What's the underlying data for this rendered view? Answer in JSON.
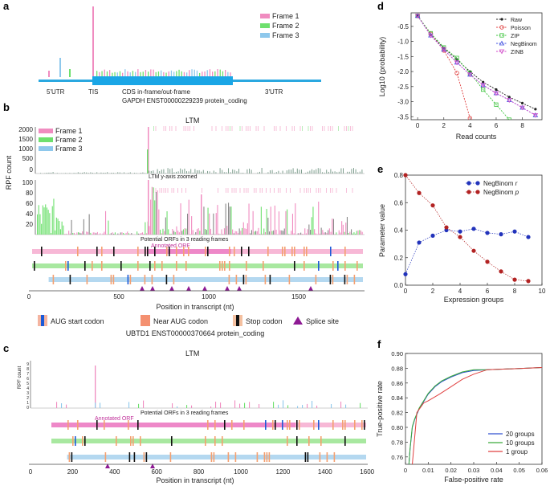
{
  "panels": {
    "a": {
      "letter": "a",
      "legend": [
        "Frame 1",
        "Frame 2",
        "Frame 3"
      ],
      "regions": {
        "utr5": "5'UTR",
        "tis": "TIS",
        "cds": "CDS in-frame/out-frame",
        "utr3": "3'UTR"
      },
      "gene": "GAPDH ENST00000229239 protein_coding"
    },
    "b": {
      "letter": "b",
      "title": "LTM",
      "ylabel": "RPF count",
      "legend": [
        "Frame 1",
        "Frame 2",
        "Frame 3"
      ],
      "yticks_top": [
        "2000",
        "1500",
        "1000",
        "500",
        "0"
      ],
      "zoom_label": "LTM y-axis zoomed",
      "yticks_zoom": [
        "100",
        "80",
        "60",
        "40",
        "20"
      ],
      "orf_title": "Potential ORFs in 3 reading frames",
      "annotated_orf": "Annotated ORF",
      "xticks": [
        "0",
        "500",
        "1000",
        "1500"
      ],
      "xlabel": "Position in transcript (nt)",
      "key": {
        "aug": "AUG start codon",
        "near": "Near AUG codon",
        "stop": "Stop codon",
        "splice": "Splice site"
      },
      "gene": "UBTD1 ENST00000370664 protein_coding"
    },
    "c": {
      "letter": "c",
      "title": "LTM",
      "ylabel": "RPF count",
      "yticks": [
        "9",
        "8",
        "7",
        "6",
        "5",
        "4",
        "3",
        "2",
        "1",
        "0"
      ],
      "orf_title": "Potential ORFs in 3 reading frames",
      "annotated_orf": "Annotated ORF",
      "xticks": [
        "0",
        "200",
        "400",
        "600",
        "800",
        "1000",
        "1200",
        "1400",
        "1600"
      ],
      "xlabel": "Position in transcript (nt)"
    },
    "d": {
      "letter": "d"
    },
    "e": {
      "letter": "e"
    },
    "f": {
      "letter": "f"
    }
  },
  "chart_data": [
    {
      "type": "line",
      "panel": "d",
      "xlabel": "Read counts",
      "ylabel": "Log10 (probability)",
      "xlim": [
        -0.5,
        9.5
      ],
      "ylim": [
        -3.6,
        -0.05
      ],
      "xticks": [
        "0",
        "2",
        "4",
        "6",
        "8"
      ],
      "yticks": [
        "-0.5",
        "-1.0",
        "-1.5",
        "-2.0",
        "-2.5",
        "-3.0",
        "-3.5"
      ],
      "series": [
        {
          "name": "Raw",
          "color": "#222222",
          "x": [
            0,
            1,
            2,
            3,
            4,
            5,
            6,
            7,
            8,
            9
          ],
          "y": [
            -0.15,
            -0.78,
            -1.22,
            -1.6,
            -2.0,
            -2.35,
            -2.6,
            -2.85,
            -3.05,
            -3.25
          ]
        },
        {
          "name": "Poisson",
          "color": "#e04040",
          "x": [
            0,
            1,
            2,
            3,
            4
          ],
          "y": [
            -0.15,
            -0.75,
            -1.3,
            -2.05,
            -3.55
          ]
        },
        {
          "name": "ZIP",
          "color": "#3cc43c",
          "x": [
            0,
            1,
            2,
            3,
            4,
            5,
            6,
            7
          ],
          "y": [
            -0.15,
            -0.73,
            -1.2,
            -1.55,
            -2.05,
            -2.6,
            -3.1,
            -3.6
          ]
        },
        {
          "name": "NegBinom",
          "color": "#4050e0",
          "x": [
            0,
            1,
            2,
            3,
            4,
            5,
            6,
            7,
            8,
            9
          ],
          "y": [
            -0.15,
            -0.8,
            -1.27,
            -1.7,
            -2.1,
            -2.45,
            -2.72,
            -2.95,
            -3.2,
            -3.45
          ]
        },
        {
          "name": "ZINB",
          "color": "#d048c8",
          "x": [
            0,
            1,
            2,
            3,
            4,
            5,
            6,
            7,
            8,
            9
          ],
          "y": [
            -0.15,
            -0.8,
            -1.27,
            -1.7,
            -2.1,
            -2.45,
            -2.72,
            -2.95,
            -3.2,
            -3.45
          ]
        }
      ]
    },
    {
      "type": "scatter",
      "panel": "e",
      "xlabel": "Expression groups",
      "ylabel": "Parameter value",
      "xlim": [
        0,
        10
      ],
      "ylim": [
        0,
        0.8
      ],
      "xticks": [
        "0",
        "2",
        "4",
        "6",
        "8",
        "10"
      ],
      "yticks": [
        "0.0",
        "0.2",
        "0.4",
        "0.6",
        "0.8"
      ],
      "series": [
        {
          "name": "NegBinom r",
          "name_base": "NegBinom ",
          "name_italic": "r",
          "color": "#2233bb",
          "x": [
            0,
            1,
            2,
            3,
            4,
            5,
            6,
            7,
            8,
            9
          ],
          "y": [
            0.08,
            0.31,
            0.36,
            0.4,
            0.39,
            0.41,
            0.38,
            0.37,
            0.39,
            0.35
          ]
        },
        {
          "name": "NegBinom p",
          "name_base": "NegBinom ",
          "name_italic": "p",
          "color": "#b22222",
          "x": [
            0,
            1,
            2,
            3,
            4,
            5,
            6,
            7,
            8,
            9
          ],
          "y": [
            0.8,
            0.67,
            0.58,
            0.42,
            0.35,
            0.25,
            0.17,
            0.1,
            0.04,
            0.03
          ]
        }
      ]
    },
    {
      "type": "line",
      "panel": "f",
      "xlabel": "False-positive rate",
      "ylabel": "True-positive rate",
      "xlim": [
        0,
        0.06
      ],
      "ylim": [
        0.75,
        0.9
      ],
      "xticks": [
        "0",
        "0.01",
        "0.02",
        "0.03",
        "0.04",
        "0.05",
        "0.06"
      ],
      "yticks": [
        "0.90",
        "0.88",
        "0.86",
        "0.84",
        "0.82",
        "0.80",
        "0.78",
        "0.76"
      ],
      "series": [
        {
          "name": "20 groups",
          "color": "#3050d0",
          "x": [
            0.0015,
            0.002,
            0.003,
            0.004,
            0.006,
            0.008,
            0.01,
            0.013,
            0.016,
            0.02,
            0.025,
            0.03,
            0.036,
            0.045,
            0.06
          ],
          "y": [
            0.75,
            0.77,
            0.8,
            0.81,
            0.825,
            0.835,
            0.845,
            0.855,
            0.862,
            0.868,
            0.874,
            0.877,
            0.878,
            0.879,
            0.881
          ]
        },
        {
          "name": "10 groups",
          "color": "#3aaa3a",
          "x": [
            0.0015,
            0.002,
            0.003,
            0.004,
            0.006,
            0.008,
            0.01,
            0.013,
            0.016,
            0.02,
            0.025,
            0.03,
            0.036,
            0.045,
            0.06
          ],
          "y": [
            0.75,
            0.771,
            0.801,
            0.811,
            0.826,
            0.836,
            0.846,
            0.856,
            0.863,
            0.869,
            0.875,
            0.878,
            0.878,
            0.879,
            0.881
          ]
        },
        {
          "name": "1 group",
          "color": "#e04040",
          "x": [
            0.003,
            0.005,
            0.008,
            0.01,
            0.015,
            0.02,
            0.025,
            0.03,
            0.036,
            0.045,
            0.06
          ],
          "y": [
            0.75,
            0.82,
            0.833,
            0.836,
            0.845,
            0.855,
            0.865,
            0.872,
            0.878,
            0.879,
            0.881
          ]
        }
      ]
    }
  ]
}
